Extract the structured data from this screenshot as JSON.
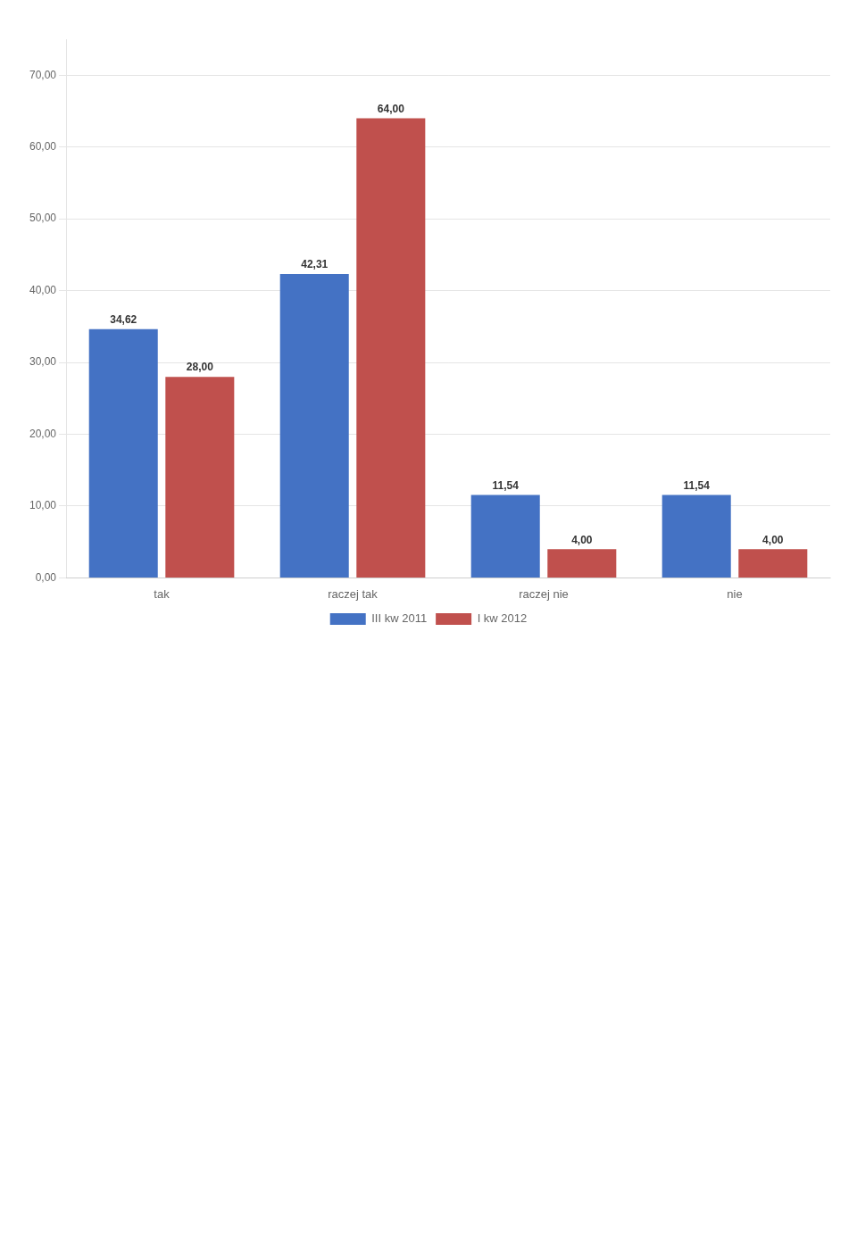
{
  "chart_data": {
    "type": "bar",
    "categories": [
      "tak",
      "raczej tak",
      "raczej nie",
      "nie"
    ],
    "series": [
      {
        "name": "III kw 2011",
        "color": "#4472c4",
        "values": [
          34.62,
          42.31,
          11.54,
          11.54
        ],
        "value_labels": [
          "34,62",
          "42,31",
          "11,54",
          "11,54"
        ]
      },
      {
        "name": "I kw 2012",
        "color": "#c0504d",
        "values": [
          28.0,
          64.0,
          4.0,
          4.0
        ],
        "value_labels": [
          "28,00",
          "64,00",
          "4,00",
          "4,00"
        ]
      }
    ],
    "ylim": [
      0,
      75
    ],
    "yticks": [
      {
        "value": 0,
        "label": "0,00"
      },
      {
        "value": 10,
        "label": "10,00"
      },
      {
        "value": 20,
        "label": "20,00"
      },
      {
        "value": 30,
        "label": "30,00"
      },
      {
        "value": 40,
        "label": "40,00"
      },
      {
        "value": 50,
        "label": "50,00"
      },
      {
        "value": 60,
        "label": "60,00"
      },
      {
        "value": 70,
        "label": "70,00"
      }
    ],
    "grid": true,
    "legend": "bottom",
    "data_labels": true
  }
}
